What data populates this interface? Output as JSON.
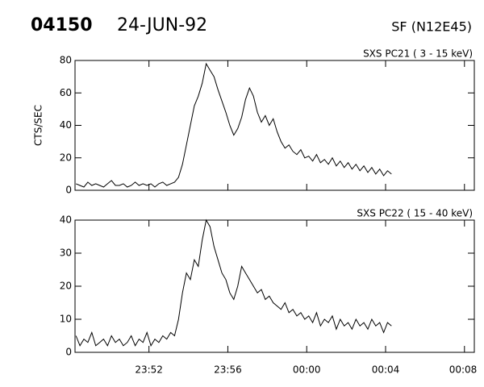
{
  "header": {
    "id": "04150",
    "date": "24-JUN-92",
    "region": "SF (N12E45)"
  },
  "chart_data": [
    {
      "type": "line",
      "title": "SXS PC21  (  3 - 15 keV)",
      "y_label": "CTS/SEC",
      "color": "#000000",
      "x": [
        1428.3,
        1428.5,
        1428.7,
        1428.9,
        1429.1,
        1429.3,
        1429.5,
        1429.7,
        1429.9,
        1430.1,
        1430.3,
        1430.5,
        1430.7,
        1430.9,
        1431.1,
        1431.3,
        1431.5,
        1431.7,
        1431.9,
        1432.1,
        1432.3,
        1432.5,
        1432.7,
        1432.9,
        1433.1,
        1433.3,
        1433.5,
        1433.7,
        1433.9,
        1434.1,
        1434.3,
        1434.5,
        1434.7,
        1434.9,
        1435.1,
        1435.3,
        1435.5,
        1435.7,
        1435.9,
        1436.1,
        1436.3,
        1436.5,
        1436.7,
        1436.9,
        1437.1,
        1437.3,
        1437.5,
        1437.7,
        1437.9,
        1438.1,
        1438.3,
        1438.5,
        1438.7,
        1438.9,
        1439.1,
        1439.3,
        1439.5,
        1439.7,
        1439.9,
        1440.1,
        1440.3,
        1440.5,
        1440.7,
        1440.9,
        1441.1,
        1441.3,
        1441.5,
        1441.7,
        1441.9,
        1442.1,
        1442.3,
        1442.5,
        1442.7,
        1442.9,
        1443.1,
        1443.3,
        1443.5,
        1443.7,
        1443.9,
        1444.1,
        1444.3
      ],
      "values": [
        4,
        3,
        2,
        5,
        3,
        4,
        3,
        2,
        4,
        6,
        3,
        3,
        4,
        2,
        3,
        5,
        3,
        4,
        3,
        4,
        2,
        4,
        5,
        3,
        4,
        5,
        8,
        16,
        28,
        40,
        52,
        58,
        66,
        78,
        74,
        70,
        62,
        55,
        48,
        40,
        34,
        38,
        45,
        56,
        63,
        58,
        48,
        42,
        46,
        40,
        44,
        36,
        30,
        26,
        28,
        24,
        22,
        25,
        20,
        21,
        18,
        22,
        17,
        19,
        16,
        20,
        15,
        18,
        14,
        17,
        13,
        16,
        12,
        15,
        11,
        14,
        10,
        13,
        9,
        12,
        10
      ],
      "xlim": [
        1428.25,
        1448.5
      ],
      "xticks": [
        1432,
        1436,
        1440,
        1444,
        1448
      ],
      "ylim": [
        0,
        80
      ],
      "yticks": [
        0,
        20,
        40,
        60,
        80
      ]
    },
    {
      "type": "line",
      "title": "SXS PC22  ( 15 - 40 keV)",
      "color": "#000000",
      "x": [
        1428.3,
        1428.5,
        1428.7,
        1428.9,
        1429.1,
        1429.3,
        1429.5,
        1429.7,
        1429.9,
        1430.1,
        1430.3,
        1430.5,
        1430.7,
        1430.9,
        1431.1,
        1431.3,
        1431.5,
        1431.7,
        1431.9,
        1432.1,
        1432.3,
        1432.5,
        1432.7,
        1432.9,
        1433.1,
        1433.3,
        1433.5,
        1433.7,
        1433.9,
        1434.1,
        1434.3,
        1434.5,
        1434.7,
        1434.9,
        1435.1,
        1435.3,
        1435.5,
        1435.7,
        1435.9,
        1436.1,
        1436.3,
        1436.5,
        1436.7,
        1436.9,
        1437.1,
        1437.3,
        1437.5,
        1437.7,
        1437.9,
        1438.1,
        1438.3,
        1438.5,
        1438.7,
        1438.9,
        1439.1,
        1439.3,
        1439.5,
        1439.7,
        1439.9,
        1440.1,
        1440.3,
        1440.5,
        1440.7,
        1440.9,
        1441.1,
        1441.3,
        1441.5,
        1441.7,
        1441.9,
        1442.1,
        1442.3,
        1442.5,
        1442.7,
        1442.9,
        1443.1,
        1443.3,
        1443.5,
        1443.7,
        1443.9,
        1444.1,
        1444.3
      ],
      "values": [
        5,
        2,
        4,
        3,
        6,
        2,
        3,
        4,
        2,
        5,
        3,
        4,
        2,
        3,
        5,
        2,
        4,
        3,
        6,
        2,
        4,
        3,
        5,
        4,
        6,
        5,
        10,
        18,
        24,
        22,
        28,
        26,
        34,
        40,
        38,
        32,
        28,
        24,
        22,
        18,
        16,
        20,
        26,
        24,
        22,
        20,
        18,
        19,
        16,
        17,
        15,
        14,
        13,
        15,
        12,
        13,
        11,
        12,
        10,
        11,
        9,
        12,
        8,
        10,
        9,
        11,
        7,
        10,
        8,
        9,
        7,
        10,
        8,
        9,
        7,
        10,
        8,
        9,
        6,
        9,
        8
      ],
      "xlim": [
        1428.25,
        1448.5
      ],
      "xticks": [
        {
          "value": 1432,
          "label": "23:52"
        },
        {
          "value": 1436,
          "label": "23:56"
        },
        {
          "value": 1440,
          "label": "00:00"
        },
        {
          "value": 1444,
          "label": "00:04"
        },
        {
          "value": 1448,
          "label": "00:08"
        }
      ],
      "ylim": [
        0,
        40
      ],
      "yticks": [
        0,
        10,
        20,
        30,
        40
      ]
    }
  ]
}
